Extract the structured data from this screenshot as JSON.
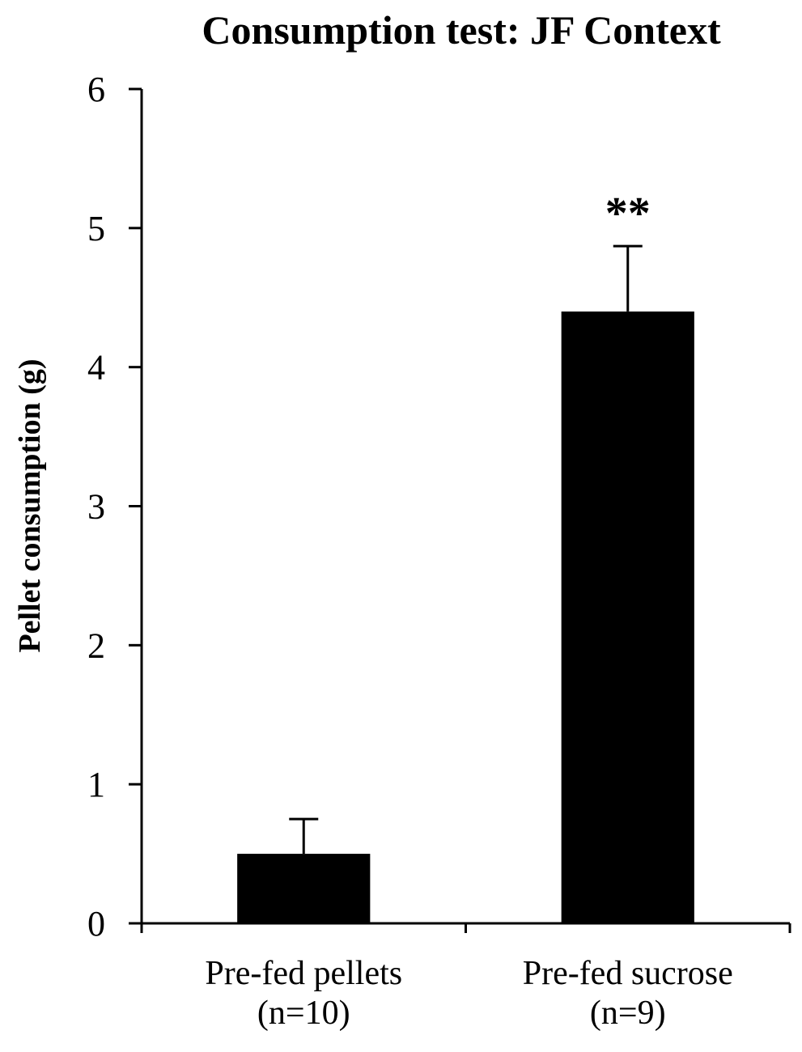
{
  "chart_data": {
    "type": "bar",
    "title": "Consumption test: JF Context",
    "xlabel": "",
    "ylabel": "Pellet consumption (g)",
    "ylim": [
      0,
      6
    ],
    "yticks": [
      0,
      1,
      2,
      3,
      4,
      5,
      6
    ],
    "grid": false,
    "legend": "none",
    "categories": [
      {
        "line1": "Pre-fed pellets",
        "line2": "(n=10)"
      },
      {
        "line1": "Pre-fed sucrose",
        "line2": "(n=9)"
      }
    ],
    "values": [
      0.5,
      4.4
    ],
    "error_upper": [
      0.25,
      0.47
    ],
    "annotations": [
      "",
      "**"
    ],
    "bar_color": "#000000"
  }
}
